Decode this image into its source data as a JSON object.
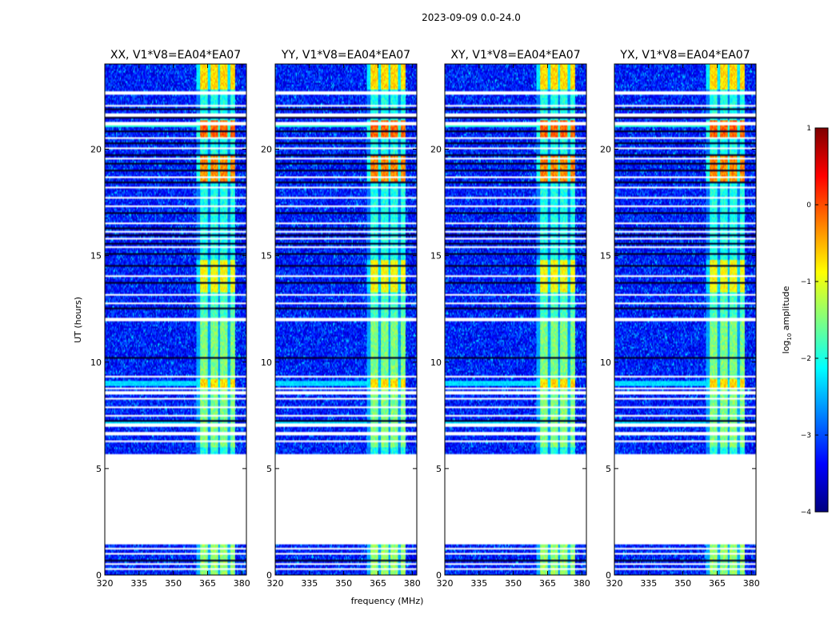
{
  "chart_data": {
    "type": "heatmap",
    "suptitle": "2023-09-09 0.0-24.0",
    "xlabel": "frequency (MHz)",
    "ylabel": "UT (hours)",
    "xlim": [
      320,
      382
    ],
    "ylim": [
      0,
      24
    ],
    "xticks": [
      320,
      335,
      350,
      365,
      380
    ],
    "yticks": [
      0,
      5,
      10,
      15,
      20
    ],
    "colorbar": {
      "label_main": "log",
      "label_sub": "10",
      "label_tail": " amplitude",
      "range": [
        -4,
        1
      ],
      "ticks": [
        -4,
        -3,
        -2,
        -1,
        0,
        1
      ],
      "tick_labels": [
        "−4",
        "−3",
        "−2",
        "−1",
        "0",
        "1"
      ],
      "colors": [
        "#00007f",
        "#0000ff",
        "#0080ff",
        "#00ffff",
        "#80ff80",
        "#ffff00",
        "#ff8000",
        "#ff0000",
        "#7f0000"
      ]
    },
    "panels": [
      {
        "title": "XX, V1*V8=EA04*EA07",
        "rfi_band_mhz": [
          360,
          377
        ],
        "max_log_amp": 1.0
      },
      {
        "title": "YY, V1*V8=EA04*EA07",
        "rfi_band_mhz": [
          360,
          377
        ],
        "max_log_amp": 1.0
      },
      {
        "title": "XY, V1*V8=EA04*EA07",
        "rfi_band_mhz": [
          360,
          377
        ],
        "max_log_amp": 0.6
      },
      {
        "title": "YX, V1*V8=EA04*EA07",
        "rfi_band_mhz": [
          360,
          377
        ],
        "max_log_amp": 0.6
      }
    ],
    "gaps_ut": [
      [
        1.4,
        5.7
      ],
      [
        0.95,
        1.05
      ],
      [
        11.95,
        12.1
      ],
      [
        22.6,
        22.75
      ]
    ]
  }
}
